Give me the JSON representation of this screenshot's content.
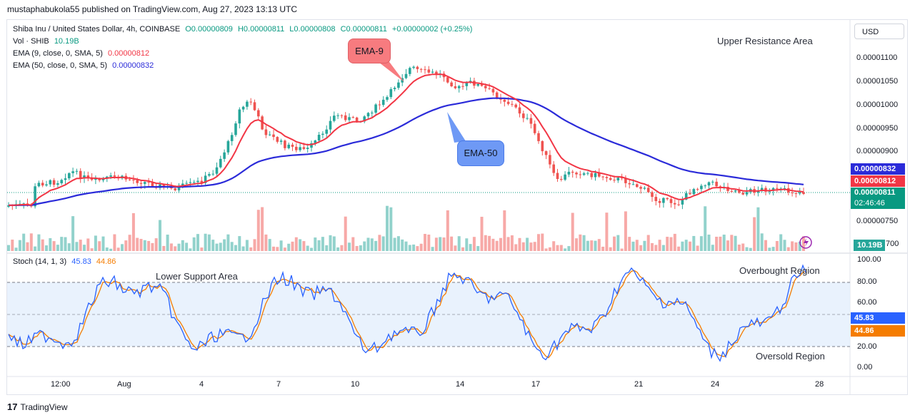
{
  "header": {
    "publisher": "mustaphabukola55 published on TradingView.com, Aug 27, 2023 13:13 UTC"
  },
  "legend": {
    "symbol_line": "Shiba Inu / United States Dollar, 4h, COINBASE",
    "ohlc": {
      "o": "O0.00000809",
      "h": "H0.00000811",
      "l": "L0.00000808",
      "c": "C0.00000811",
      "chg": "+0.00000002 (+0.25%)"
    },
    "vol_label": "Vol · SHIB",
    "vol_value": "10.19B",
    "ema9_label": "EMA (9, close, 0, SMA, 5)",
    "ema9_value": "0.00000812",
    "ema50_label": "EMA (50, close, 0, SMA, 5)",
    "ema50_value": "0.00000832",
    "stoch_label": "Stoch (14, 1, 3)",
    "stoch_k": "45.83",
    "stoch_d": "44.86"
  },
  "currency_button": "USD",
  "price_axis": [
    "0.00001100",
    "0.00001050",
    "0.00001000",
    "0.00000950",
    "0.00000900",
    "0.00000750",
    "700"
  ],
  "price_tags": {
    "ema50": "0.00000832",
    "ema9": "0.00000812",
    "last": "0.00000811",
    "countdown": "02:46:46",
    "volume": "10.19B"
  },
  "stoch_axis": [
    "100.00",
    "80.00",
    "60.00",
    "20.00",
    "0.00"
  ],
  "stoch_tags": {
    "k": "45.83",
    "d": "44.86"
  },
  "time_axis": [
    "12:00",
    "Aug",
    "4",
    "7",
    "10",
    "14",
    "17",
    "21",
    "24",
    "28"
  ],
  "annotations": {
    "upper_resistance": "Upper Resistance Area",
    "lower_support": "Lower Support Area",
    "overbought": "Overbought Region",
    "oversold": "Oversold Region",
    "ema9_bubble": "EMA-9",
    "ema50_bubble": "EMA-50"
  },
  "footer": {
    "brand": "TradingView"
  },
  "colors": {
    "up": "#26a69a",
    "down": "#ef5350",
    "ema9": "#f23645",
    "ema50": "#2b2bd9",
    "stoch_k": "#2962ff",
    "stoch_d": "#f57c00",
    "last_price": "#089981"
  }
}
